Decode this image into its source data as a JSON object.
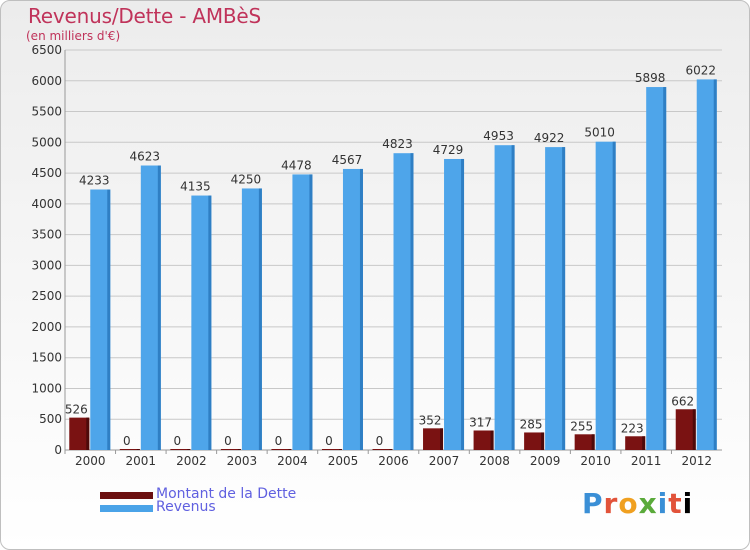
{
  "header": {
    "title": "Revenus/Dette - AMBèS",
    "subtitle": "(en milliers d'€)"
  },
  "legend": [
    {
      "label": "Montant de la Dette",
      "color": "#6b0f0f"
    },
    {
      "label": "Revenus",
      "color": "#4aa3e8"
    }
  ],
  "logo": "Proxiti",
  "colors": {
    "debt": "#7a1212",
    "revenue": "#4ea5ea",
    "revenue_side": "#2f7fc4",
    "debt_side": "#4e0a0a",
    "grid": "#c8c8c8",
    "axis_text": "#333333"
  },
  "chart_data": {
    "type": "bar",
    "title": "Revenus/Dette - AMBèS",
    "subtitle": "(en milliers d'€)",
    "categories": [
      "2000",
      "2001",
      "2002",
      "2003",
      "2004",
      "2005",
      "2006",
      "2007",
      "2008",
      "2009",
      "2010",
      "2011",
      "2012"
    ],
    "series": [
      {
        "name": "Montant de la Dette",
        "values": [
          526,
          0,
          0,
          0,
          0,
          0,
          0,
          352,
          317,
          285,
          255,
          223,
          662
        ]
      },
      {
        "name": "Revenus",
        "values": [
          4233,
          4623,
          4135,
          4250,
          4478,
          4567,
          4823,
          4729,
          4953,
          4922,
          5010,
          5898,
          6022
        ]
      }
    ],
    "ylim": [
      0,
      6500
    ],
    "yticks": [
      0,
      500,
      1000,
      1500,
      2000,
      2500,
      3000,
      3500,
      4000,
      4500,
      5000,
      5500,
      6000,
      6500
    ],
    "grid": true,
    "legend_position": "bottom-left"
  }
}
